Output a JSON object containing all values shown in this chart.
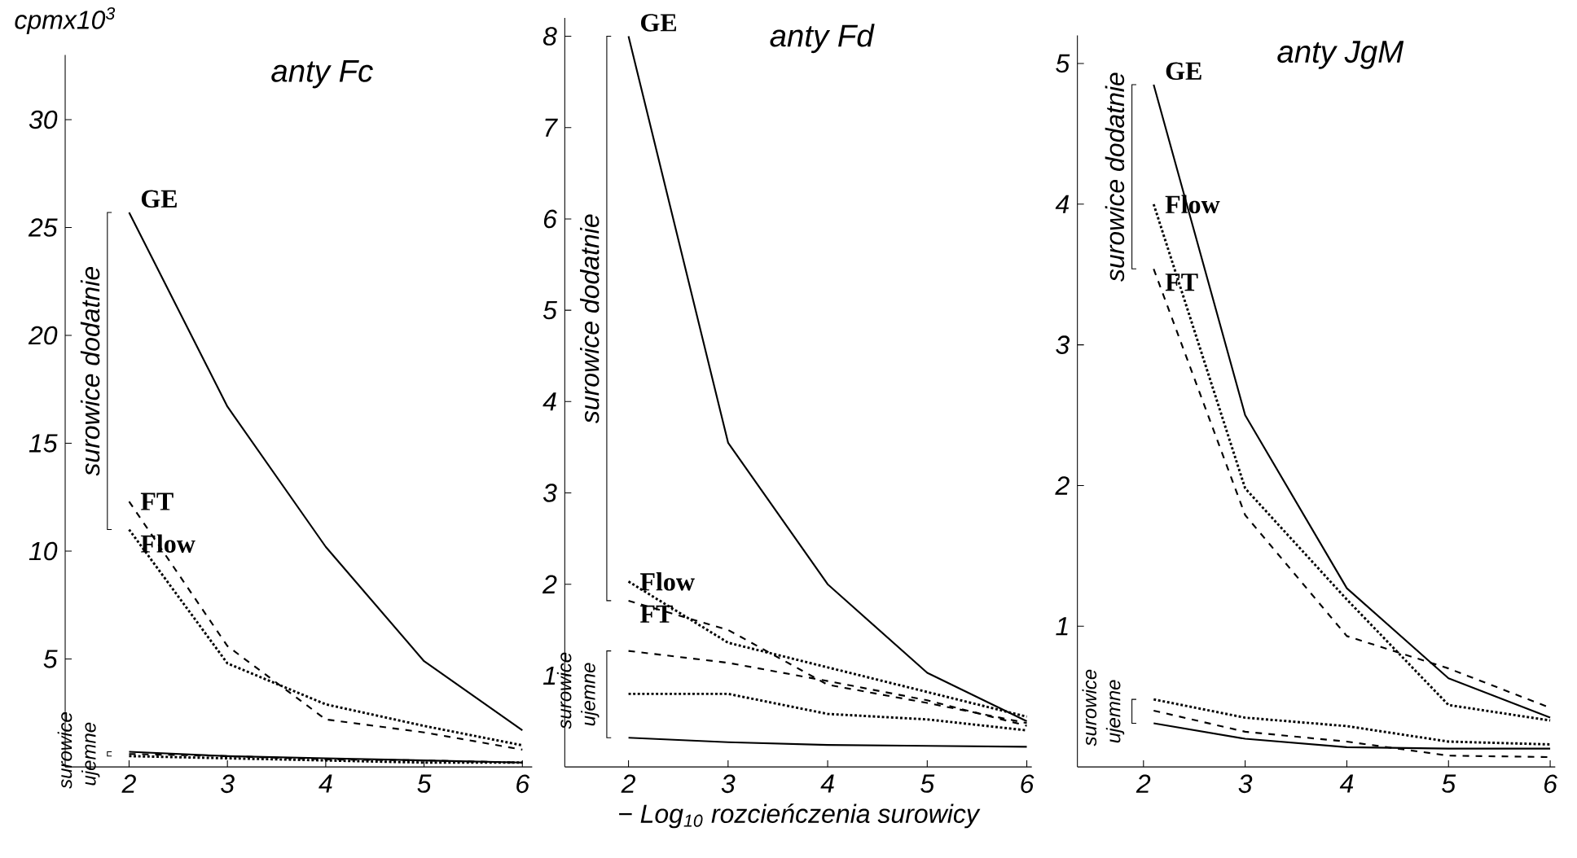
{
  "chart_data": [
    {
      "type": "line",
      "title": "anty Fc",
      "ylabel": "cpmx10$^{3}$",
      "x": [
        2,
        3,
        4,
        5,
        6
      ],
      "xlim": [
        1.35,
        6.1
      ],
      "xticks": [
        2,
        3,
        4,
        5,
        6
      ],
      "ylim": [
        0,
        33
      ],
      "yticks": [
        5,
        10,
        15,
        20,
        25,
        30
      ],
      "annotations": [
        "surowice dodatnie",
        "surowice ujemne"
      ],
      "series": [
        {
          "name": "GE",
          "color": "#000000",
          "line_style": "solid",
          "values": [
            25.7,
            16.7,
            10.2,
            4.9,
            1.7
          ]
        },
        {
          "name": "FT",
          "color": "#000000",
          "line_style": "dashed",
          "values": [
            12.3,
            5.6,
            2.2,
            1.6,
            0.8
          ]
        },
        {
          "name": "Flow",
          "color": "#000000",
          "line_style": "dotted",
          "values": [
            11.0,
            4.8,
            2.9,
            1.9,
            1.0
          ]
        },
        {
          "color": "#000000",
          "line_style": "solid",
          "values": [
            0.7,
            0.5,
            0.4,
            0.3,
            0.2
          ]
        },
        {
          "color": "#000000",
          "line_style": "dashed",
          "values": [
            0.6,
            0.5,
            0.35,
            0.3,
            0.2
          ]
        },
        {
          "color": "#000000",
          "line_style": "dotted",
          "values": [
            0.5,
            0.4,
            0.3,
            0.2,
            0.2
          ]
        }
      ]
    },
    {
      "type": "line",
      "title": "anty Fd",
      "xlabel": "− Log$_{10}$ rozcieńczenia surowicy",
      "x": [
        2,
        3,
        4,
        5,
        6
      ],
      "xlim": [
        1.36,
        6.05
      ],
      "xticks": [
        2,
        3,
        4,
        5,
        6
      ],
      "ylim": [
        0,
        8.2
      ],
      "yticks": [
        1,
        2,
        3,
        4,
        5,
        6,
        7,
        8
      ],
      "annotations": [
        "surowice dodatnie",
        "surowice ujemne"
      ],
      "series": [
        {
          "name": "GE",
          "color": "#000000",
          "line_style": "solid",
          "values": [
            8.0,
            3.55,
            2.0,
            1.03,
            0.5
          ]
        },
        {
          "name": "FT",
          "color": "#000000",
          "line_style": "dashed",
          "values": [
            1.82,
            1.5,
            0.9,
            0.7,
            0.48
          ]
        },
        {
          "name": "Flow",
          "color": "#000000",
          "line_style": "dotted",
          "values": [
            2.03,
            1.36,
            1.09,
            0.82,
            0.55
          ]
        },
        {
          "color": "#000000",
          "line_style": "solid",
          "values": [
            0.32,
            0.27,
            0.24,
            0.23,
            0.22
          ]
        },
        {
          "color": "#000000",
          "line_style": "dashed",
          "values": [
            1.27,
            1.14,
            0.94,
            0.73,
            0.45
          ]
        },
        {
          "color": "#000000",
          "line_style": "dotted",
          "values": [
            0.8,
            0.8,
            0.58,
            0.52,
            0.4
          ]
        }
      ]
    },
    {
      "type": "line",
      "title": "anty JgM",
      "x": [
        2.1,
        3,
        4,
        5,
        6
      ],
      "xlim": [
        1.35,
        6.05
      ],
      "xticks": [
        2,
        3,
        4,
        5,
        6
      ],
      "ylim": [
        0,
        5.2
      ],
      "yticks": [
        1,
        2,
        3,
        4,
        5
      ],
      "annotations": [
        "surowice dodatnie",
        "surowice ujemne"
      ],
      "series": [
        {
          "name": "GE",
          "color": "#000000",
          "line_style": "solid",
          "values": [
            4.85,
            2.5,
            1.27,
            0.63,
            0.35
          ]
        },
        {
          "name": "FT",
          "color": "#000000",
          "line_style": "dashed",
          "values": [
            3.54,
            1.79,
            0.93,
            0.7,
            0.42
          ]
        },
        {
          "name": "Flow",
          "color": "#000000",
          "line_style": "dotted",
          "values": [
            4.0,
            1.98,
            1.19,
            0.44,
            0.33
          ]
        },
        {
          "color": "#000000",
          "line_style": "solid",
          "values": [
            0.31,
            0.2,
            0.14,
            0.13,
            0.13
          ]
        },
        {
          "color": "#000000",
          "line_style": "dashed",
          "values": [
            0.4,
            0.25,
            0.18,
            0.08,
            0.07
          ]
        },
        {
          "color": "#000000",
          "line_style": "dotted",
          "values": [
            0.48,
            0.35,
            0.29,
            0.18,
            0.16
          ]
        }
      ]
    }
  ]
}
